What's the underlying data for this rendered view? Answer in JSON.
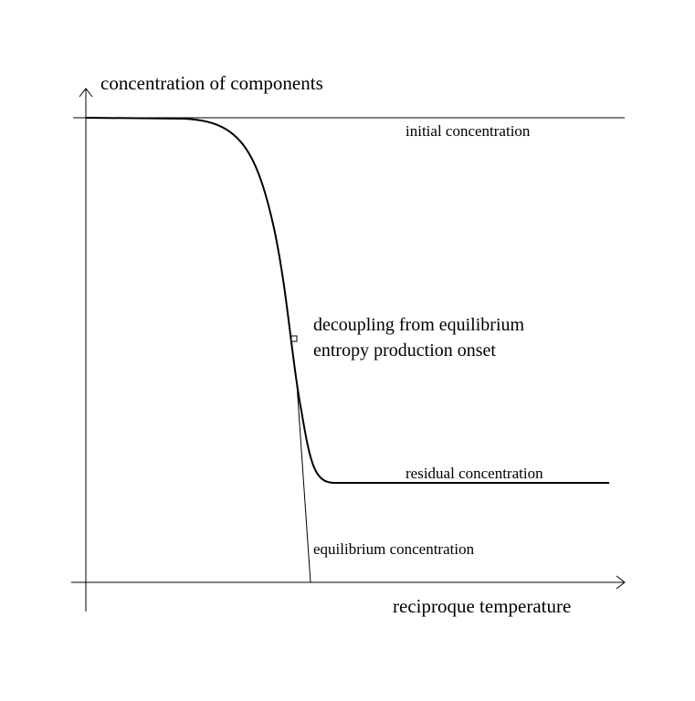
{
  "axes": {
    "y_label": "concentration of components",
    "x_label": "reciproque temperature"
  },
  "labels": {
    "initial": "initial concentration",
    "residual": "residual concentration",
    "equilibrium": "equilibrium concentration",
    "decoupling": "decoupling from equilibrium",
    "onset": "entropy production onset"
  }
}
